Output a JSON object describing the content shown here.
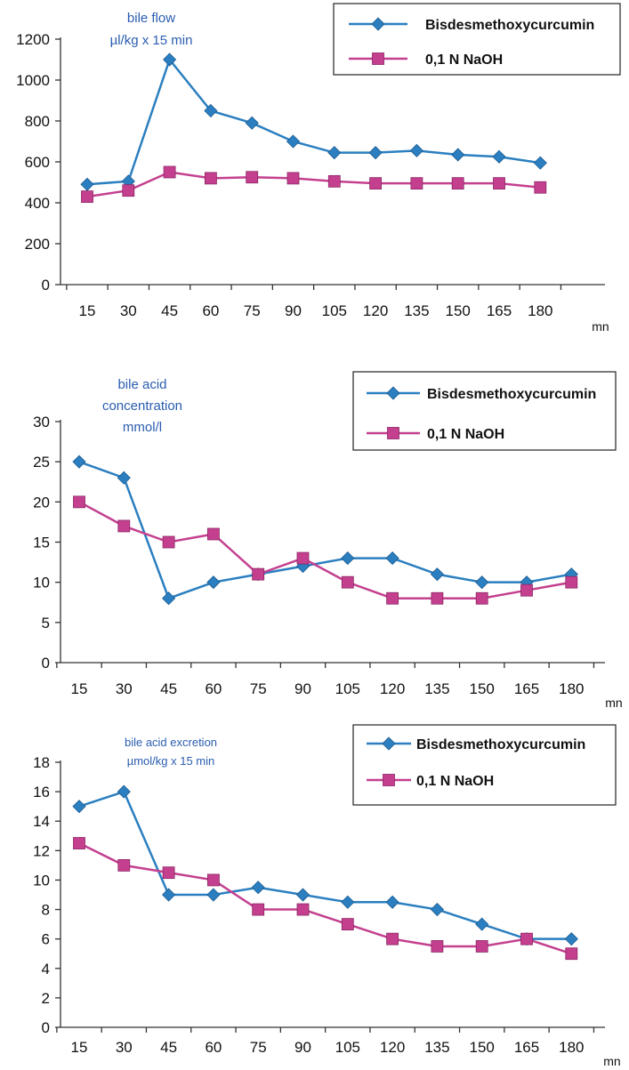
{
  "colors": {
    "series1": "#2b7fc0",
    "series2": "#c4408f"
  },
  "chart_data": [
    {
      "type": "line",
      "title": "",
      "annotation": [
        "bile flow",
        "µl/kg x 15 min"
      ],
      "xlabel": "mn",
      "x": [
        "15",
        "30",
        "45",
        "60",
        "75",
        "90",
        "105",
        "120",
        "135",
        "150",
        "165",
        "180"
      ],
      "yticks": [
        "0",
        "200",
        "400",
        "600",
        "800",
        "1000",
        "1200"
      ],
      "ylim": [
        0,
        1200
      ],
      "legend_position": "top-right",
      "series": [
        {
          "name": "Bisdesmethoxycurcumin",
          "marker": "diamond",
          "values": [
            490,
            505,
            1100,
            850,
            790,
            700,
            645,
            645,
            655,
            635,
            625,
            595
          ]
        },
        {
          "name": "0,1 N NaOH",
          "marker": "square",
          "values": [
            430,
            460,
            550,
            520,
            525,
            520,
            505,
            495,
            495,
            495,
            495,
            475
          ]
        }
      ]
    },
    {
      "type": "line",
      "title": "",
      "annotation": [
        "bile acid",
        "concentration",
        "mmol/l"
      ],
      "xlabel": "mn",
      "x": [
        "15",
        "30",
        "45",
        "60",
        "75",
        "90",
        "105",
        "120",
        "135",
        "150",
        "165",
        "180"
      ],
      "yticks": [
        "0",
        "5",
        "10",
        "15",
        "20",
        "25",
        "30"
      ],
      "ylim": [
        0,
        30
      ],
      "legend_position": "top-right",
      "series": [
        {
          "name": "Bisdesmethoxycurcumin",
          "marker": "diamond",
          "values": [
            25,
            23,
            8,
            10,
            11,
            12,
            13,
            13,
            11,
            10,
            10,
            11
          ]
        },
        {
          "name": "0,1 N NaOH",
          "marker": "square",
          "values": [
            20,
            17,
            15,
            16,
            11,
            13,
            10,
            8,
            8,
            8,
            9,
            10
          ]
        }
      ]
    },
    {
      "type": "line",
      "title": "",
      "annotation": [
        "bile acid excretion",
        "µmol/kg x 15 min"
      ],
      "xlabel": "mn",
      "x": [
        "15",
        "30",
        "45",
        "60",
        "75",
        "90",
        "105",
        "120",
        "135",
        "150",
        "165",
        "180"
      ],
      "yticks": [
        "0",
        "2",
        "4",
        "6",
        "8",
        "10",
        "12",
        "14",
        "16",
        "18"
      ],
      "ylim": [
        0,
        18
      ],
      "legend_position": "top-right",
      "series": [
        {
          "name": "Bisdesmethoxycurcumin",
          "marker": "diamond",
          "values": [
            15,
            16,
            9,
            9,
            9.5,
            9,
            8.5,
            8.5,
            8,
            7,
            6,
            6
          ]
        },
        {
          "name": "0,1 N NaOH",
          "marker": "square",
          "values": [
            12.5,
            11,
            10.5,
            10,
            8,
            8,
            7,
            6,
            5.5,
            5.5,
            6,
            5
          ]
        }
      ]
    }
  ]
}
